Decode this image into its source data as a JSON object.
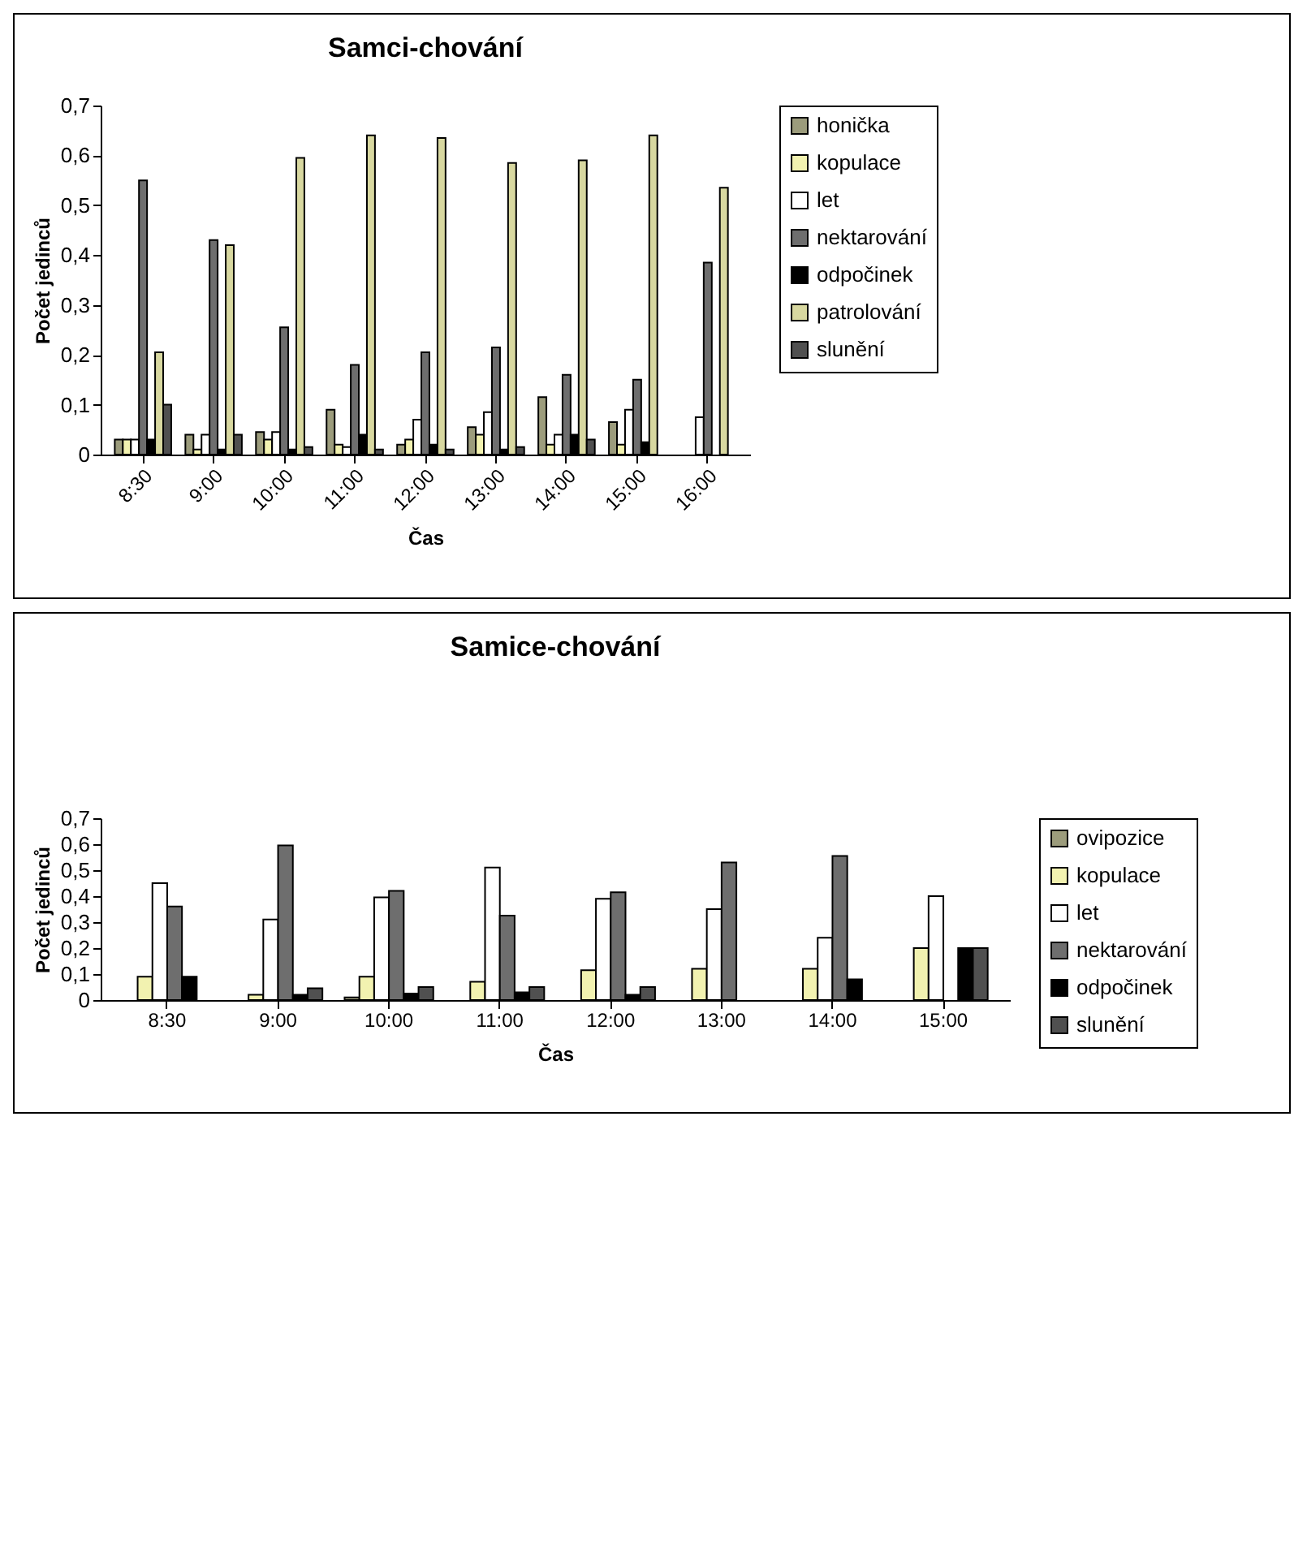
{
  "chart_data": [
    {
      "type": "bar",
      "title": "Samci-chování",
      "xlabel": "Čas",
      "ylabel": "Počet jedinců",
      "categories": [
        "8:30",
        "9:00",
        "10:00",
        "11:00",
        "12:00",
        "13:00",
        "14:00",
        "15:00",
        "16:00"
      ],
      "series": [
        {
          "name": "honička",
          "color": "#9c9c7c",
          "values": [
            0.03,
            0.04,
            0.045,
            0.09,
            0.02,
            0.055,
            0.115,
            0.065,
            null
          ]
        },
        {
          "name": "kopulace",
          "color": "#f2f2b0",
          "values": [
            0.03,
            0.01,
            0.03,
            0.02,
            0.03,
            0.04,
            0.02,
            0.02,
            null
          ]
        },
        {
          "name": "let",
          "color": "#ffffff",
          "values": [
            0.03,
            0.04,
            0.045,
            0.015,
            0.07,
            0.085,
            0.04,
            0.09,
            0.075
          ]
        },
        {
          "name": "nektarování",
          "color": "#6e6e6e",
          "values": [
            0.55,
            0.43,
            0.255,
            0.18,
            0.205,
            0.215,
            0.16,
            0.15,
            0.385
          ]
        },
        {
          "name": "odpočinek",
          "color": "#000000",
          "values": [
            0.03,
            0.01,
            0.01,
            0.04,
            0.02,
            0.01,
            0.04,
            0.025,
            null
          ]
        },
        {
          "name": "patrolování",
          "color": "#d8d8a0",
          "values": [
            0.205,
            0.42,
            0.595,
            0.64,
            0.635,
            0.585,
            0.59,
            0.64,
            0.535
          ]
        },
        {
          "name": "slunění",
          "color": "#505050",
          "values": [
            0.1,
            0.04,
            0.015,
            0.01,
            0.01,
            0.015,
            0.03,
            null,
            null
          ]
        }
      ],
      "ylim": [
        0,
        0.7
      ],
      "yticks": [
        {
          "value": 0,
          "label": "0"
        },
        {
          "value": 0.1,
          "label": "0,1"
        },
        {
          "value": 0.2,
          "label": "0,2"
        },
        {
          "value": 0.3,
          "label": "0,3"
        },
        {
          "value": 0.4,
          "label": "0,4"
        },
        {
          "value": 0.5,
          "label": "0,5"
        },
        {
          "value": 0.6,
          "label": "0,6"
        },
        {
          "value": 0.7,
          "label": "0,7"
        }
      ],
      "grid": false,
      "legend": "right"
    },
    {
      "type": "bar",
      "title": "Samice-chování",
      "xlabel": "Čas",
      "ylabel": "Počet jedinců",
      "categories": [
        "8:30",
        "9:00",
        "10:00",
        "11:00",
        "12:00",
        "13:00",
        "14:00",
        "15:00"
      ],
      "series": [
        {
          "name": "ovipozice",
          "color": "#9c9c7c",
          "values": [
            null,
            null,
            0.01,
            null,
            null,
            null,
            null,
            null
          ]
        },
        {
          "name": "kopulace",
          "color": "#f2f2b0",
          "values": [
            0.09,
            0.02,
            0.09,
            0.07,
            0.115,
            0.12,
            0.12,
            0.2
          ]
        },
        {
          "name": "let",
          "color": "#ffffff",
          "values": [
            0.45,
            0.31,
            0.395,
            0.51,
            0.39,
            0.35,
            0.24,
            0.4
          ]
        },
        {
          "name": "nektarování",
          "color": "#6e6e6e",
          "values": [
            0.36,
            0.595,
            0.42,
            0.325,
            0.415,
            0.53,
            0.555,
            null
          ]
        },
        {
          "name": "odpočinek",
          "color": "#000000",
          "values": [
            0.09,
            0.02,
            0.025,
            0.03,
            0.02,
            null,
            0.08,
            0.2
          ]
        },
        {
          "name": "slunění",
          "color": "#505050",
          "values": [
            null,
            0.045,
            0.05,
            0.05,
            0.05,
            null,
            null,
            0.2
          ]
        }
      ],
      "ylim": [
        0,
        0.7
      ],
      "yticks": [
        {
          "value": 0,
          "label": "0"
        },
        {
          "value": 0.1,
          "label": "0,1"
        },
        {
          "value": 0.2,
          "label": "0,2"
        },
        {
          "value": 0.3,
          "label": "0,3"
        },
        {
          "value": 0.4,
          "label": "0,4"
        },
        {
          "value": 0.5,
          "label": "0,5"
        },
        {
          "value": 0.6,
          "label": "0,6"
        },
        {
          "value": 0.7,
          "label": "0,7"
        }
      ],
      "grid": false,
      "legend": "right"
    }
  ]
}
